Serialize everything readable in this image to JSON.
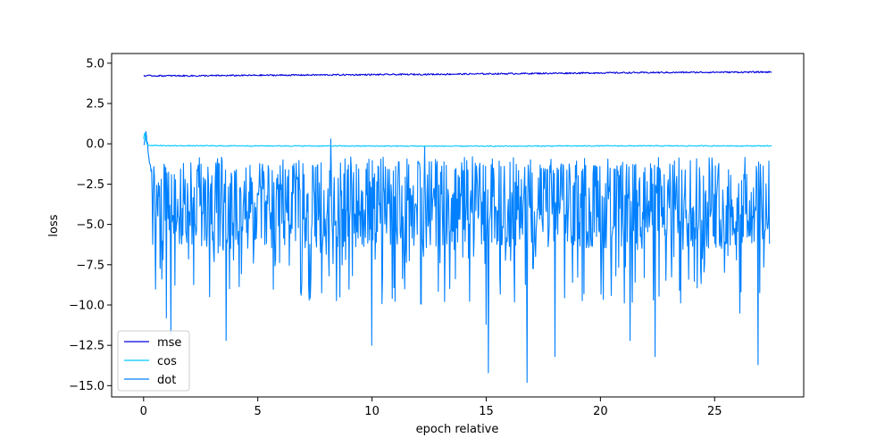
{
  "chart_data": {
    "type": "line",
    "title": "",
    "xlabel": "epoch relative",
    "ylabel": "loss",
    "xlim": [
      -1.4,
      28.9
    ],
    "ylim": [
      -15.7,
      5.6
    ],
    "xticks": [
      0,
      5,
      10,
      15,
      20,
      25
    ],
    "yticks": [
      5.0,
      2.5,
      0.0,
      -2.5,
      -5.0,
      -7.5,
      -10.0,
      -12.5,
      -15.0
    ],
    "ytick_labels": [
      "5.0",
      "2.5",
      "0.0",
      "−2.5",
      "−5.0",
      "−7.5",
      "−10.0",
      "−12.5",
      "−15.0"
    ],
    "grid": false,
    "legend_position": "lower-left",
    "series": [
      {
        "name": "mse",
        "color": "#0000dd",
        "x": [
          0,
          2.5,
          5,
          7.5,
          10,
          12.5,
          15,
          17.5,
          20,
          22.5,
          25,
          27.5
        ],
        "values": [
          4.22,
          4.22,
          4.25,
          4.27,
          4.29,
          4.31,
          4.34,
          4.37,
          4.4,
          4.42,
          4.44,
          4.45
        ]
      },
      {
        "name": "cos",
        "color": "#00c8ff",
        "x": [
          0,
          0.05,
          0.1,
          0.15,
          0.2,
          0.3,
          0.5,
          1,
          5,
          10,
          15,
          20,
          25,
          27.5
        ],
        "values": [
          0.3,
          0.8,
          0.2,
          0.0,
          -0.1,
          -0.1,
          -0.1,
          -0.12,
          -0.13,
          -0.14,
          -0.15,
          -0.13,
          -0.13,
          -0.13
        ]
      },
      {
        "name": "dot",
        "color": "#0080ff",
        "x": [
          0,
          0.1,
          0.2,
          0.3,
          1.0,
          1.2,
          2.0,
          3.6,
          4.5,
          8.2,
          8.6,
          10.0,
          12.3,
          15.0,
          15.1,
          16.8,
          18.0,
          21.3,
          22.4,
          24.0,
          26.1,
          26.9,
          27.4
        ],
        "values": [
          -0.3,
          0.7,
          -0.5,
          -1.5,
          -10.8,
          -11.8,
          -4.2,
          -12.2,
          -5.5,
          0.3,
          -9.5,
          -12.5,
          -0.2,
          -11.2,
          -14.2,
          -14.8,
          -13.2,
          -12.2,
          -13.2,
          -4.0,
          -10.5,
          -13.7,
          -6.2
        ],
        "mean": -3.7,
        "typical_range": [
          -6.5,
          -1.2
        ]
      }
    ]
  }
}
